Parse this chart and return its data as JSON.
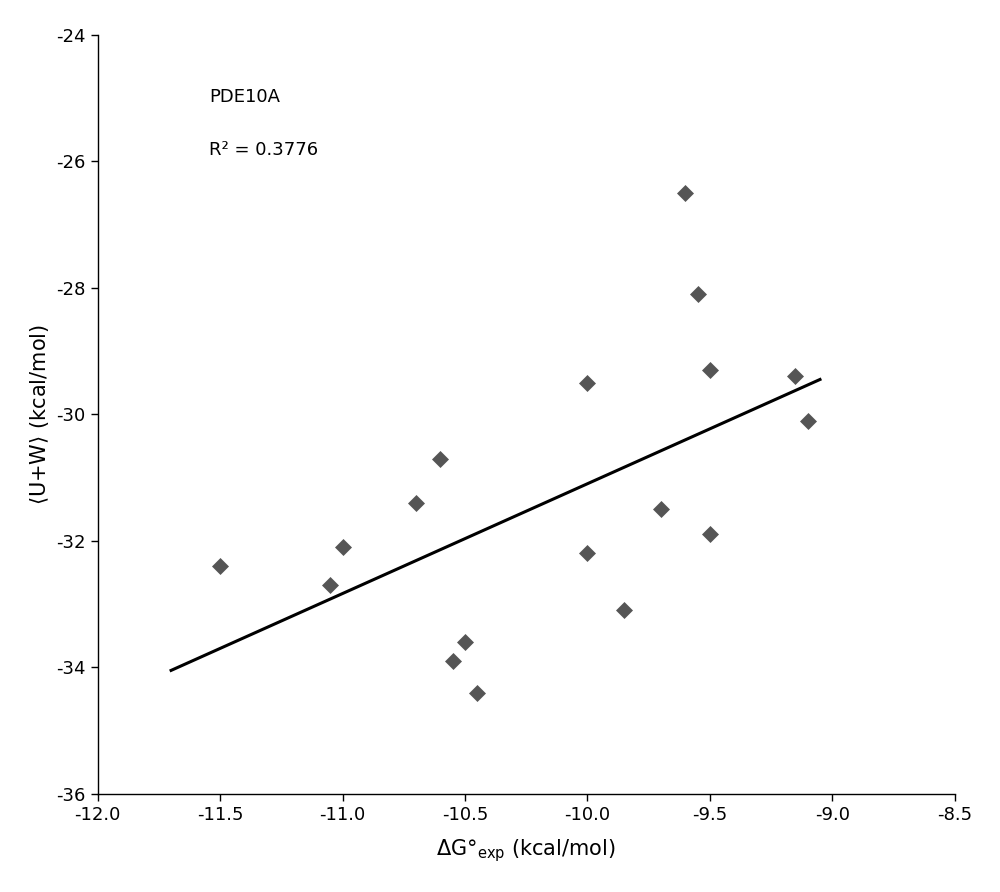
{
  "x_data": [
    -11.5,
    -11.05,
    -11.0,
    -10.7,
    -10.6,
    -10.55,
    -10.5,
    -10.45,
    -10.0,
    -10.0,
    -9.85,
    -9.7,
    -9.6,
    -9.55,
    -9.5,
    -9.5,
    -9.15,
    -9.1
  ],
  "y_data": [
    -32.4,
    -32.7,
    -32.1,
    -31.4,
    -30.7,
    -33.9,
    -33.6,
    -34.4,
    -29.5,
    -32.2,
    -33.1,
    -31.5,
    -26.5,
    -28.1,
    -29.3,
    -31.9,
    -29.4,
    -30.1
  ],
  "line_x0": -11.7,
  "line_y0": -34.05,
  "line_x1": -9.05,
  "line_y1": -29.45,
  "xlabel_main": "ΔG°",
  "xlabel_sub": "exp",
  "xlabel_suffix": " (kcal/mol)",
  "ylabel": "⟨U+W⟩ (kcal/mol)",
  "annotation_line1": "PDE10A",
  "annotation_line2": "R² = 0.3776",
  "xlim": [
    -12.0,
    -8.5
  ],
  "ylim": [
    -36,
    -24
  ],
  "xticks": [
    -12.0,
    -11.5,
    -11.0,
    -10.5,
    -10.0,
    -9.5,
    -9.0,
    -8.5
  ],
  "yticks": [
    -36,
    -34,
    -32,
    -30,
    -28,
    -26,
    -24
  ],
  "marker_color": "#555555",
  "marker_size": 75,
  "line_color": "#000000",
  "line_width": 2.2,
  "background_color": "#ffffff",
  "label_fontsize": 15,
  "tick_fontsize": 13,
  "annot_fontsize": 13
}
